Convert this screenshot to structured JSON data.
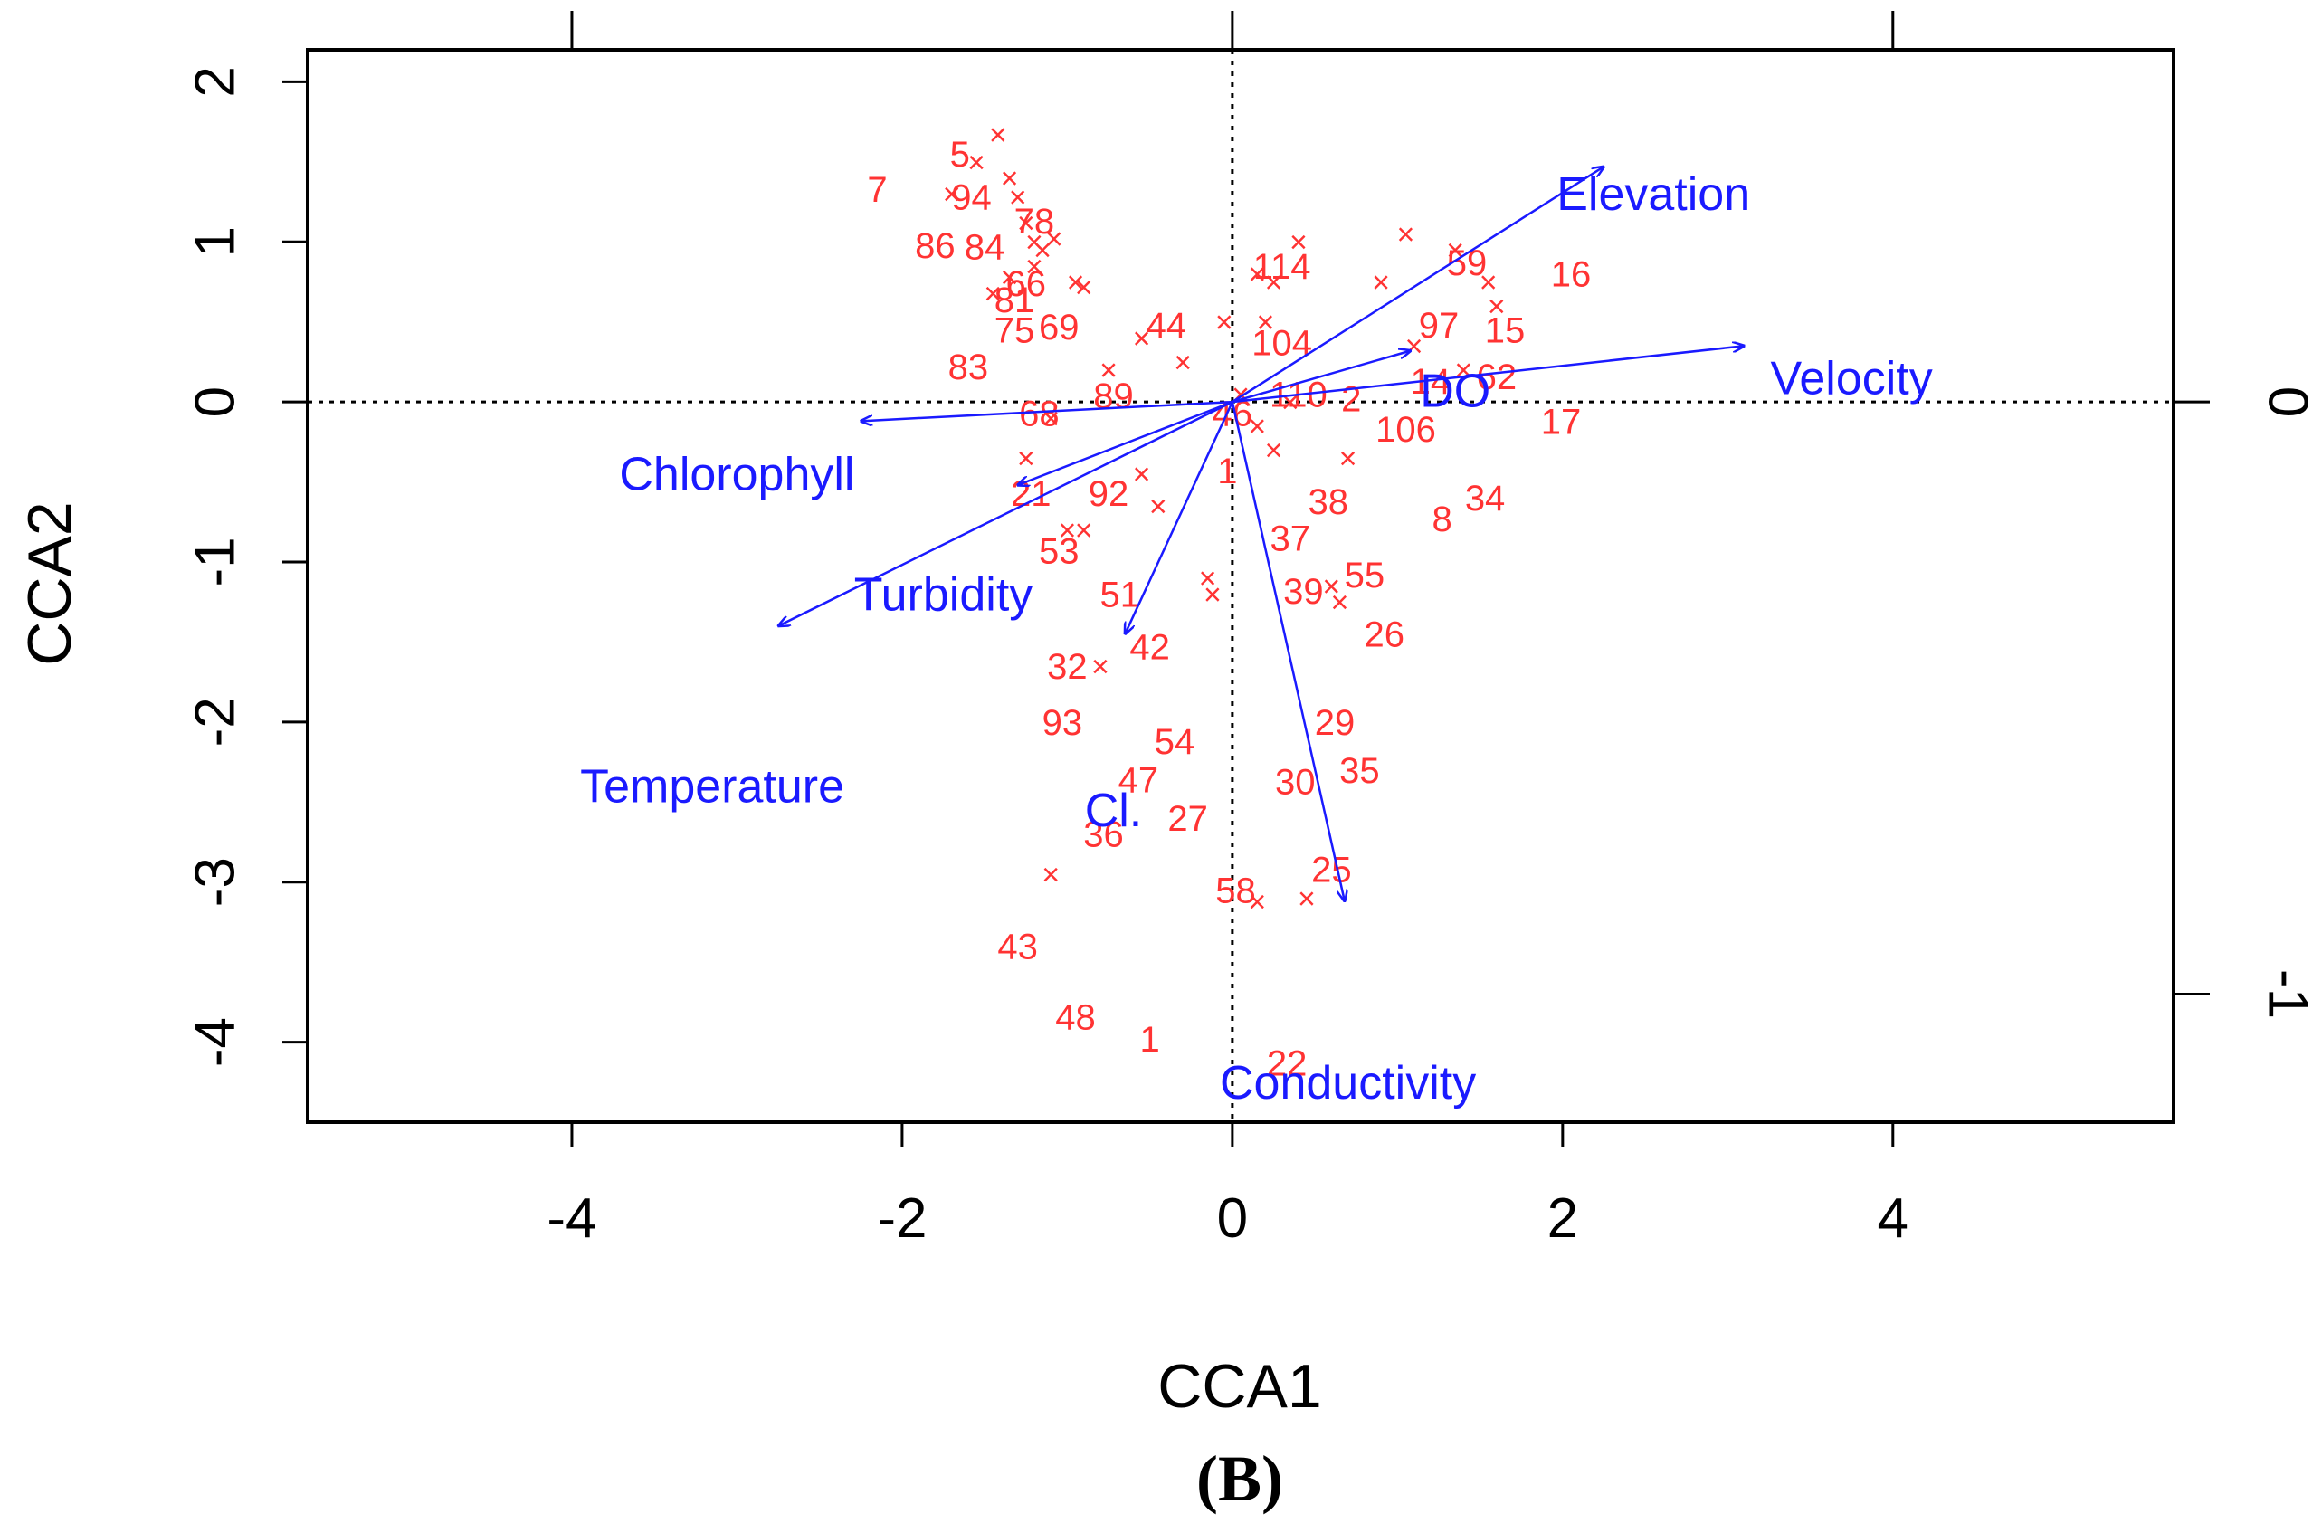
{
  "chart_data": {
    "type": "scatter",
    "subtype": "CCA triplot",
    "title": "",
    "panel_label": "(B)",
    "xlabel": "CCA1",
    "ylabel": "CCA2",
    "xlim": [
      -5.6,
      5.7
    ],
    "ylim": [
      -4.5,
      2.2
    ],
    "xticks": [
      -4,
      -2,
      0,
      2,
      4
    ],
    "yticks": [
      2,
      1,
      0,
      -1,
      -2,
      -3,
      -4
    ],
    "top_axis_ticks_data_x": [
      -4,
      0,
      4
    ],
    "right_axis_ticks": [
      0,
      -1
    ],
    "right_axis_label_positions_y": [
      0,
      -3.7
    ],
    "reference_lines": {
      "x": 0,
      "y": 0,
      "style": "dotted"
    },
    "colors": {
      "sites": "#ff3333",
      "env": "#1a1aff",
      "axes": "#000000"
    },
    "site_marker": "×",
    "species_markers": [
      [
        -1.42,
        1.67
      ],
      [
        -1.55,
        1.5
      ],
      [
        -1.35,
        1.4
      ],
      [
        -1.3,
        1.28
      ],
      [
        -1.7,
        1.3
      ],
      [
        -1.25,
        1.12
      ],
      [
        -1.2,
        1.0
      ],
      [
        -1.15,
        0.95
      ],
      [
        -1.08,
        1.02
      ],
      [
        -1.2,
        0.85
      ],
      [
        -1.35,
        0.78
      ],
      [
        -1.45,
        0.68
      ],
      [
        -0.95,
        0.75
      ],
      [
        -0.9,
        0.72
      ],
      [
        -0.55,
        0.4
      ],
      [
        -0.75,
        0.2
      ],
      [
        -0.3,
        0.25
      ],
      [
        -0.05,
        0.5
      ],
      [
        0.15,
        0.8
      ],
      [
        0.4,
        1.0
      ],
      [
        0.25,
        0.75
      ],
      [
        0.2,
        0.5
      ],
      [
        0.9,
        0.75
      ],
      [
        1.05,
        1.05
      ],
      [
        1.35,
        0.95
      ],
      [
        1.55,
        0.75
      ],
      [
        1.6,
        0.6
      ],
      [
        1.1,
        0.35
      ],
      [
        1.4,
        0.2
      ],
      [
        -1.1,
        -0.1
      ],
      [
        -1.25,
        -0.35
      ],
      [
        -0.55,
        -0.45
      ],
      [
        -0.45,
        -0.65
      ],
      [
        -1.0,
        -0.8
      ],
      [
        -0.9,
        -0.8
      ],
      [
        -0.15,
        -1.1
      ],
      [
        -0.12,
        -1.2
      ],
      [
        0.6,
        -1.15
      ],
      [
        0.65,
        -1.25
      ],
      [
        0.7,
        -0.35
      ],
      [
        0.25,
        -0.3
      ],
      [
        0.15,
        -0.15
      ],
      [
        0.35,
        0.0
      ],
      [
        -1.1,
        -2.95
      ],
      [
        0.15,
        -3.12
      ],
      [
        0.45,
        -3.1
      ],
      [
        0.05,
        0.05
      ],
      [
        -0.8,
        -1.65
      ]
    ],
    "sites": [
      {
        "label": "5",
        "x": -1.65,
        "y": 1.55
      },
      {
        "label": "7",
        "x": -2.15,
        "y": 1.33
      },
      {
        "label": "94",
        "x": -1.58,
        "y": 1.28
      },
      {
        "label": "78",
        "x": -1.2,
        "y": 1.13
      },
      {
        "label": "86",
        "x": -1.8,
        "y": 0.98
      },
      {
        "label": "84",
        "x": -1.5,
        "y": 0.97
      },
      {
        "label": "66",
        "x": -1.25,
        "y": 0.74
      },
      {
        "label": "81",
        "x": -1.32,
        "y": 0.64
      },
      {
        "label": "75",
        "x": -1.32,
        "y": 0.45
      },
      {
        "label": "69",
        "x": -1.05,
        "y": 0.47
      },
      {
        "label": "83",
        "x": -1.6,
        "y": 0.22
      },
      {
        "label": "44",
        "x": -0.4,
        "y": 0.48
      },
      {
        "label": "68",
        "x": -1.17,
        "y": -0.07
      },
      {
        "label": "89",
        "x": -0.72,
        "y": 0.04
      },
      {
        "label": "46",
        "x": 0.0,
        "y": -0.07
      },
      {
        "label": "114",
        "x": 0.3,
        "y": 0.85
      },
      {
        "label": "104",
        "x": 0.3,
        "y": 0.37
      },
      {
        "label": "110",
        "x": 0.4,
        "y": 0.05
      },
      {
        "label": "2",
        "x": 0.72,
        "y": 0.02
      },
      {
        "label": "59",
        "x": 1.42,
        "y": 0.87
      },
      {
        "label": "16",
        "x": 2.05,
        "y": 0.8
      },
      {
        "label": "97",
        "x": 1.25,
        "y": 0.48
      },
      {
        "label": "15",
        "x": 1.65,
        "y": 0.45
      },
      {
        "label": "62",
        "x": 1.6,
        "y": 0.16
      },
      {
        "label": "14",
        "x": 1.2,
        "y": 0.13
      },
      {
        "label": "106",
        "x": 1.05,
        "y": -0.17
      },
      {
        "label": "17",
        "x": 1.99,
        "y": -0.12
      },
      {
        "label": "34",
        "x": 1.53,
        "y": -0.6
      },
      {
        "label": "8",
        "x": 1.27,
        "y": -0.73
      },
      {
        "label": "38",
        "x": 0.58,
        "y": -0.62
      },
      {
        "label": "37",
        "x": 0.35,
        "y": -0.85
      },
      {
        "label": "1",
        "x": -0.03,
        "y": -0.43
      },
      {
        "label": "21",
        "x": -1.22,
        "y": -0.57
      },
      {
        "label": "92",
        "x": -0.75,
        "y": -0.57
      },
      {
        "label": "53",
        "x": -1.05,
        "y": -0.93
      },
      {
        "label": "51",
        "x": -0.68,
        "y": -1.2
      },
      {
        "label": "55",
        "x": 0.8,
        "y": -1.08
      },
      {
        "label": "39",
        "x": 0.43,
        "y": -1.18
      },
      {
        "label": "26",
        "x": 0.92,
        "y": -1.45
      },
      {
        "label": "42",
        "x": -0.5,
        "y": -1.53
      },
      {
        "label": "32",
        "x": -1.0,
        "y": -1.65
      },
      {
        "label": "93",
        "x": -1.03,
        "y": -2.0
      },
      {
        "label": "29",
        "x": 0.62,
        "y": -2.0
      },
      {
        "label": "54",
        "x": -0.35,
        "y": -2.12
      },
      {
        "label": "30",
        "x": 0.38,
        "y": -2.37
      },
      {
        "label": "35",
        "x": 0.77,
        "y": -2.3
      },
      {
        "label": "47",
        "x": -0.57,
        "y": -2.36
      },
      {
        "label": "27",
        "x": -0.27,
        "y": -2.6
      },
      {
        "label": "36",
        "x": -0.78,
        "y": -2.7
      },
      {
        "label": "58",
        "x": 0.02,
        "y": -3.05
      },
      {
        "label": "25",
        "x": 0.6,
        "y": -2.92
      },
      {
        "label": "43",
        "x": -1.3,
        "y": -3.4
      },
      {
        "label": "48",
        "x": -0.95,
        "y": -3.84
      },
      {
        "label": "1",
        "x": -0.5,
        "y": -3.98
      },
      {
        "label": "22",
        "x": 0.33,
        "y": -4.13
      }
    ],
    "env_vectors": [
      {
        "name": "Elevation",
        "x": 2.25,
        "y": 1.47,
        "label_x": 2.55,
        "label_y": 1.3
      },
      {
        "name": "Velocity",
        "x": 3.1,
        "y": 0.35,
        "label_x": 3.75,
        "label_y": 0.15
      },
      {
        "name": "DO",
        "x": 1.08,
        "y": 0.32,
        "label_x": 1.35,
        "label_y": 0.07
      },
      {
        "name": "Chlorophyll",
        "x": -2.25,
        "y": -0.12,
        "label_x": -3.0,
        "label_y": -0.45
      },
      {
        "name": "Turbidity",
        "x": -1.3,
        "y": -0.52,
        "label_x": -1.75,
        "label_y": -1.2
      },
      {
        "name": "Temperature",
        "x": -2.75,
        "y": -1.4,
        "label_x": -3.15,
        "label_y": -2.4
      },
      {
        "name": "Cl.",
        "x": -0.65,
        "y": -1.45,
        "label_x": -0.72,
        "label_y": -2.55
      },
      {
        "name": "Conductivity",
        "x": 0.68,
        "y": -3.12,
        "label_x": 0.7,
        "label_y": -4.25
      }
    ]
  }
}
